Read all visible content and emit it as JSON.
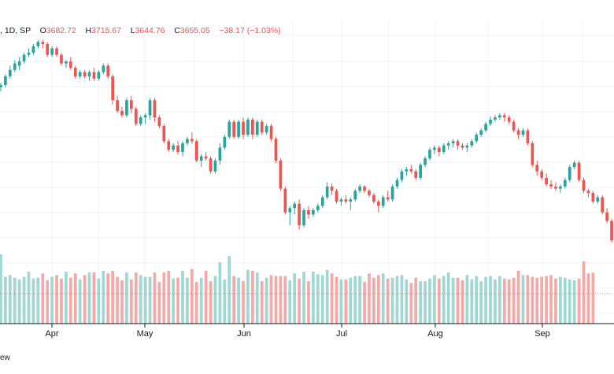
{
  "legend": {
    "symbol_fragment": ", 1D, SP",
    "open_label": "O",
    "open": "3682.72",
    "high_label": "H",
    "high": "3715.67",
    "low_label": "L",
    "low": "3644.76",
    "close_label": "C",
    "close": "3655.05",
    "change": "−38.17 (−1.03%)"
  },
  "watermark_fragment": "ew",
  "colors": {
    "up": "#26a69a",
    "down": "#ef5350",
    "up_volume": "#9fd8d2",
    "down_volume": "#f5a9a7",
    "grid": "#f0f3fa",
    "axis": "#131722"
  },
  "chart_data": {
    "type": "candlestick",
    "interval": "1D",
    "x_tick_labels": [
      "Apr",
      "May",
      "Jun",
      "Jul",
      "Aug",
      "Sep"
    ],
    "ylim": [
      3620,
      4660
    ],
    "volume_max": 8,
    "grid": true,
    "candles": [
      {
        "o": 4420,
        "h": 4440,
        "l": 4400,
        "c": 4430
      },
      {
        "o": 4430,
        "h": 4480,
        "l": 4420,
        "c": 4470
      },
      {
        "o": 4470,
        "h": 4520,
        "l": 4460,
        "c": 4500
      },
      {
        "o": 4500,
        "h": 4545,
        "l": 4490,
        "c": 4530
      },
      {
        "o": 4520,
        "h": 4560,
        "l": 4500,
        "c": 4540
      },
      {
        "o": 4540,
        "h": 4580,
        "l": 4530,
        "c": 4570
      },
      {
        "o": 4570,
        "h": 4600,
        "l": 4560,
        "c": 4580
      },
      {
        "o": 4580,
        "h": 4620,
        "l": 4570,
        "c": 4610
      },
      {
        "o": 4610,
        "h": 4640,
        "l": 4600,
        "c": 4630
      },
      {
        "o": 4630,
        "h": 4640,
        "l": 4600,
        "c": 4620
      },
      {
        "o": 4620,
        "h": 4630,
        "l": 4560,
        "c": 4570
      },
      {
        "o": 4570,
        "h": 4610,
        "l": 4560,
        "c": 4600
      },
      {
        "o": 4600,
        "h": 4610,
        "l": 4560,
        "c": 4570
      },
      {
        "o": 4570,
        "h": 4580,
        "l": 4520,
        "c": 4530
      },
      {
        "o": 4530,
        "h": 4545,
        "l": 4510,
        "c": 4540
      },
      {
        "o": 4540,
        "h": 4560,
        "l": 4500,
        "c": 4510
      },
      {
        "o": 4510,
        "h": 4520,
        "l": 4460,
        "c": 4470
      },
      {
        "o": 4470,
        "h": 4500,
        "l": 4460,
        "c": 4490
      },
      {
        "o": 4490,
        "h": 4500,
        "l": 4460,
        "c": 4470
      },
      {
        "o": 4470,
        "h": 4500,
        "l": 4450,
        "c": 4490
      },
      {
        "o": 4490,
        "h": 4510,
        "l": 4450,
        "c": 4460
      },
      {
        "o": 4460,
        "h": 4500,
        "l": 4450,
        "c": 4490
      },
      {
        "o": 4490,
        "h": 4530,
        "l": 4480,
        "c": 4520
      },
      {
        "o": 4520,
        "h": 4530,
        "l": 4460,
        "c": 4470
      },
      {
        "o": 4470,
        "h": 4480,
        "l": 4340,
        "c": 4360
      },
      {
        "o": 4360,
        "h": 4380,
        "l": 4300,
        "c": 4310
      },
      {
        "o": 4310,
        "h": 4330,
        "l": 4280,
        "c": 4290
      },
      {
        "o": 4290,
        "h": 4370,
        "l": 4280,
        "c": 4360
      },
      {
        "o": 4360,
        "h": 4380,
        "l": 4300,
        "c": 4320
      },
      {
        "o": 4320,
        "h": 4330,
        "l": 4240,
        "c": 4250
      },
      {
        "o": 4250,
        "h": 4290,
        "l": 4240,
        "c": 4280
      },
      {
        "o": 4280,
        "h": 4300,
        "l": 4250,
        "c": 4290
      },
      {
        "o": 4290,
        "h": 4370,
        "l": 4270,
        "c": 4360
      },
      {
        "o": 4360,
        "h": 4370,
        "l": 4260,
        "c": 4280
      },
      {
        "o": 4280,
        "h": 4290,
        "l": 4230,
        "c": 4240
      },
      {
        "o": 4240,
        "h": 4250,
        "l": 4160,
        "c": 4170
      },
      {
        "o": 4170,
        "h": 4180,
        "l": 4120,
        "c": 4130
      },
      {
        "o": 4130,
        "h": 4160,
        "l": 4120,
        "c": 4150
      },
      {
        "o": 4150,
        "h": 4170,
        "l": 4110,
        "c": 4120
      },
      {
        "o": 4120,
        "h": 4170,
        "l": 4100,
        "c": 4160
      },
      {
        "o": 4160,
        "h": 4190,
        "l": 4150,
        "c": 4180
      },
      {
        "o": 4180,
        "h": 4210,
        "l": 4160,
        "c": 4170
      },
      {
        "o": 4170,
        "h": 4180,
        "l": 4070,
        "c": 4080
      },
      {
        "o": 4080,
        "h": 4110,
        "l": 4050,
        "c": 4100
      },
      {
        "o": 4100,
        "h": 4120,
        "l": 4080,
        "c": 4090
      },
      {
        "o": 4090,
        "h": 4100,
        "l": 4020,
        "c": 4030
      },
      {
        "o": 4030,
        "h": 4090,
        "l": 4020,
        "c": 4080
      },
      {
        "o": 4080,
        "h": 4160,
        "l": 4060,
        "c": 4140
      },
      {
        "o": 4140,
        "h": 4200,
        "l": 4130,
        "c": 4190
      },
      {
        "o": 4190,
        "h": 4270,
        "l": 4180,
        "c": 4260
      },
      {
        "o": 4260,
        "h": 4270,
        "l": 4180,
        "c": 4190
      },
      {
        "o": 4190,
        "h": 4270,
        "l": 4180,
        "c": 4260
      },
      {
        "o": 4260,
        "h": 4280,
        "l": 4180,
        "c": 4200
      },
      {
        "o": 4200,
        "h": 4280,
        "l": 4190,
        "c": 4270
      },
      {
        "o": 4270,
        "h": 4280,
        "l": 4180,
        "c": 4200
      },
      {
        "o": 4200,
        "h": 4270,
        "l": 4190,
        "c": 4260
      },
      {
        "o": 4260,
        "h": 4270,
        "l": 4200,
        "c": 4210
      },
      {
        "o": 4210,
        "h": 4250,
        "l": 4200,
        "c": 4240
      },
      {
        "o": 4240,
        "h": 4250,
        "l": 4170,
        "c": 4180
      },
      {
        "o": 4180,
        "h": 4190,
        "l": 4070,
        "c": 4080
      },
      {
        "o": 4080,
        "h": 4090,
        "l": 3940,
        "c": 3950
      },
      {
        "o": 3950,
        "h": 3960,
        "l": 3830,
        "c": 3840
      },
      {
        "o": 3840,
        "h": 3870,
        "l": 3780,
        "c": 3860
      },
      {
        "o": 3860,
        "h": 3890,
        "l": 3830,
        "c": 3880
      },
      {
        "o": 3880,
        "h": 3900,
        "l": 3760,
        "c": 3780
      },
      {
        "o": 3780,
        "h": 3860,
        "l": 3770,
        "c": 3850
      },
      {
        "o": 3850,
        "h": 3870,
        "l": 3810,
        "c": 3830
      },
      {
        "o": 3830,
        "h": 3860,
        "l": 3820,
        "c": 3850
      },
      {
        "o": 3850,
        "h": 3880,
        "l": 3840,
        "c": 3870
      },
      {
        "o": 3870,
        "h": 3920,
        "l": 3860,
        "c": 3910
      },
      {
        "o": 3910,
        "h": 3980,
        "l": 3900,
        "c": 3960
      },
      {
        "o": 3960,
        "h": 3975,
        "l": 3920,
        "c": 3940
      },
      {
        "o": 3940,
        "h": 3950,
        "l": 3880,
        "c": 3890
      },
      {
        "o": 3890,
        "h": 3910,
        "l": 3870,
        "c": 3900
      },
      {
        "o": 3900,
        "h": 3920,
        "l": 3880,
        "c": 3890
      },
      {
        "o": 3890,
        "h": 3910,
        "l": 3850,
        "c": 3900
      },
      {
        "o": 3900,
        "h": 3950,
        "l": 3890,
        "c": 3940
      },
      {
        "o": 3940,
        "h": 3970,
        "l": 3930,
        "c": 3960
      },
      {
        "o": 3960,
        "h": 3965,
        "l": 3930,
        "c": 3940
      },
      {
        "o": 3940,
        "h": 3950,
        "l": 3910,
        "c": 3920
      },
      {
        "o": 3920,
        "h": 3930,
        "l": 3880,
        "c": 3890
      },
      {
        "o": 3890,
        "h": 3900,
        "l": 3840,
        "c": 3870
      },
      {
        "o": 3870,
        "h": 3920,
        "l": 3860,
        "c": 3910
      },
      {
        "o": 3910,
        "h": 3940,
        "l": 3890,
        "c": 3900
      },
      {
        "o": 3900,
        "h": 3970,
        "l": 3890,
        "c": 3960
      },
      {
        "o": 3960,
        "h": 4000,
        "l": 3950,
        "c": 3990
      },
      {
        "o": 3990,
        "h": 4040,
        "l": 3980,
        "c": 4030
      },
      {
        "o": 4030,
        "h": 4050,
        "l": 4010,
        "c": 4040
      },
      {
        "o": 4040,
        "h": 4060,
        "l": 4020,
        "c": 4030
      },
      {
        "o": 4030,
        "h": 4040,
        "l": 3990,
        "c": 4000
      },
      {
        "o": 4000,
        "h": 4070,
        "l": 3990,
        "c": 4060
      },
      {
        "o": 4060,
        "h": 4100,
        "l": 4050,
        "c": 4090
      },
      {
        "o": 4090,
        "h": 4140,
        "l": 4080,
        "c": 4130
      },
      {
        "o": 4130,
        "h": 4150,
        "l": 4110,
        "c": 4140
      },
      {
        "o": 4140,
        "h": 4150,
        "l": 4100,
        "c": 4120
      },
      {
        "o": 4120,
        "h": 4160,
        "l": 4110,
        "c": 4150
      },
      {
        "o": 4150,
        "h": 4170,
        "l": 4130,
        "c": 4160
      },
      {
        "o": 4160,
        "h": 4180,
        "l": 4140,
        "c": 4170
      },
      {
        "o": 4170,
        "h": 4180,
        "l": 4130,
        "c": 4150
      },
      {
        "o": 4150,
        "h": 4160,
        "l": 4130,
        "c": 4140
      },
      {
        "o": 4140,
        "h": 4160,
        "l": 4120,
        "c": 4150
      },
      {
        "o": 4150,
        "h": 4180,
        "l": 4140,
        "c": 4170
      },
      {
        "o": 4170,
        "h": 4210,
        "l": 4160,
        "c": 4200
      },
      {
        "o": 4200,
        "h": 4230,
        "l": 4190,
        "c": 4220
      },
      {
        "o": 4220,
        "h": 4260,
        "l": 4210,
        "c": 4250
      },
      {
        "o": 4250,
        "h": 4285,
        "l": 4240,
        "c": 4270
      },
      {
        "o": 4270,
        "h": 4290,
        "l": 4260,
        "c": 4280
      },
      {
        "o": 4280,
        "h": 4300,
        "l": 4270,
        "c": 4290
      },
      {
        "o": 4290,
        "h": 4300,
        "l": 4260,
        "c": 4280
      },
      {
        "o": 4280,
        "h": 4290,
        "l": 4250,
        "c": 4260
      },
      {
        "o": 4260,
        "h": 4270,
        "l": 4210,
        "c": 4220
      },
      {
        "o": 4220,
        "h": 4230,
        "l": 4180,
        "c": 4200
      },
      {
        "o": 4200,
        "h": 4230,
        "l": 4190,
        "c": 4220
      },
      {
        "o": 4220,
        "h": 4230,
        "l": 4150,
        "c": 4160
      },
      {
        "o": 4160,
        "h": 4170,
        "l": 4050,
        "c": 4060
      },
      {
        "o": 4060,
        "h": 4080,
        "l": 4010,
        "c": 4030
      },
      {
        "o": 4030,
        "h": 4040,
        "l": 3990,
        "c": 4000
      },
      {
        "o": 4000,
        "h": 4020,
        "l": 3960,
        "c": 3970
      },
      {
        "o": 3970,
        "h": 3990,
        "l": 3950,
        "c": 3960
      },
      {
        "o": 3960,
        "h": 3980,
        "l": 3940,
        "c": 3950
      },
      {
        "o": 3950,
        "h": 3970,
        "l": 3930,
        "c": 3960
      },
      {
        "o": 3960,
        "h": 4000,
        "l": 3950,
        "c": 3990
      },
      {
        "o": 3990,
        "h": 4060,
        "l": 3980,
        "c": 4050
      },
      {
        "o": 4050,
        "h": 4080,
        "l": 4040,
        "c": 4070
      },
      {
        "o": 4070,
        "h": 4080,
        "l": 3980,
        "c": 3990
      },
      {
        "o": 3990,
        "h": 4000,
        "l": 3930,
        "c": 3940
      },
      {
        "o": 3940,
        "h": 3950,
        "l": 3910,
        "c": 3930
      },
      {
        "o": 3930,
        "h": 3940,
        "l": 3880,
        "c": 3890
      },
      {
        "o": 3890,
        "h": 3920,
        "l": 3880,
        "c": 3910
      },
      {
        "o": 3910,
        "h": 3920,
        "l": 3830,
        "c": 3840
      },
      {
        "o": 3840,
        "h": 3860,
        "l": 3790,
        "c": 3800
      },
      {
        "o": 3800,
        "h": 3810,
        "l": 3700,
        "c": 3710
      }
    ],
    "volumes": [
      6.2,
      5.4,
      5.6,
      5.3,
      5.1,
      5.4,
      6.0,
      5.2,
      5.3,
      5.8,
      5.0,
      5.4,
      5.6,
      5.2,
      6.0,
      5.3,
      5.8,
      5.1,
      5.6,
      5.9,
      5.9,
      5.2,
      6.1,
      5.8,
      6.1,
      5.4,
      5.0,
      5.9,
      5.1,
      5.9,
      5.6,
      5.4,
      5.4,
      5.9,
      4.8,
      5.9,
      6.1,
      5.2,
      5.3,
      6.1,
      5.3,
      6.3,
      4.8,
      5.3,
      6.1,
      4.9,
      5.5,
      5.8,
      5.1,
      7.1,
      5.5,
      5.3,
      4.9,
      6.2,
      6.1,
      5.9,
      4.9,
      5.3,
      5.6,
      5.5,
      5.5,
      5.5,
      5.0,
      5.8,
      5.2,
      6.0,
      4.9,
      6.0,
      5.7,
      5.6,
      6.2,
      5.8,
      5.4,
      5.1,
      5.1,
      5.3,
      5.5,
      5.5,
      4.8,
      5.8,
      5.3,
      5.6,
      5.8,
      5.2,
      5.3,
      5.5,
      5.6,
      5.1,
      4.7,
      5.3,
      4.9,
      4.9,
      5.2,
      5.6,
      5.2,
      5.5,
      5.9,
      5.3,
      5.3,
      5.0,
      5.6,
      5.1,
      5.5,
      4.9,
      5.4,
      5.5,
      5.1,
      5.5,
      5.2,
      5.1,
      5.3,
      6.1,
      5.6,
      5.6,
      5.4,
      5.3,
      5.4,
      5.5,
      5.6,
      5.2,
      5.4,
      5.3,
      5.1,
      5.0,
      5.2,
      5.5,
      5.8,
      5.9
    ],
    "tall_volume_bars": {
      "0": 8.0,
      "47": 7.1,
      "49": 7.8,
      "125": 7.2
    }
  }
}
